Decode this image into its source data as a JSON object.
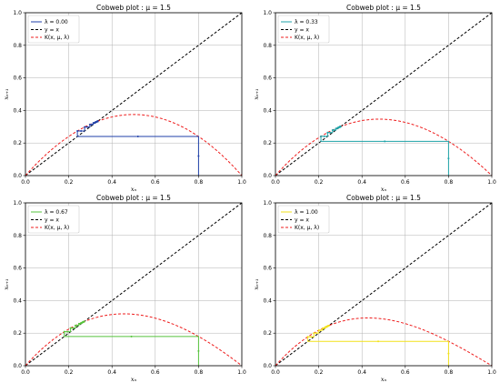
{
  "chart_data": [
    {
      "type": "line",
      "title": "Cobweb plot : μ = 1.5",
      "xlabel": "xₙ",
      "ylabel": "xₙ₊₁",
      "xlim": [
        0,
        1
      ],
      "ylim": [
        0,
        1
      ],
      "xticks": [
        "0.0",
        "0.2",
        "0.4",
        "0.6",
        "0.8",
        "1.0"
      ],
      "yticks": [
        "0.0",
        "0.2",
        "0.4",
        "0.6",
        "0.8",
        "1.0"
      ],
      "grid": true,
      "legend_loc": "upper-left",
      "lambda": 0.0,
      "x0": 0.8,
      "legend": [
        "λ = 0.00",
        "y = x",
        "K(x, μ, λ)"
      ],
      "series": [
        {
          "name": "λ = 0.00",
          "color": "#1f3fa8",
          "style": "cobweb"
        },
        {
          "name": "y = x",
          "color": "#000000",
          "style": "dashed"
        },
        {
          "name": "K(x, μ, λ)",
          "color": "#ee1c1c",
          "style": "dashed"
        }
      ]
    },
    {
      "type": "line",
      "title": "Cobweb plot : μ = 1.5",
      "xlabel": "xₙ",
      "ylabel": "xₙ₊₁",
      "xlim": [
        0,
        1
      ],
      "ylim": [
        0,
        1
      ],
      "xticks": [
        "0.0",
        "0.2",
        "0.4",
        "0.6",
        "0.8",
        "1.0"
      ],
      "yticks": [
        "0.0",
        "0.2",
        "0.4",
        "0.6",
        "0.8",
        "1.0"
      ],
      "grid": true,
      "legend_loc": "upper-left",
      "lambda": 0.33,
      "x0": 0.8,
      "legend": [
        "λ = 0.33",
        "y = x",
        "K(x, μ, λ)"
      ],
      "series": [
        {
          "name": "λ = 0.33",
          "color": "#1fa3a8",
          "style": "cobweb"
        },
        {
          "name": "y = x",
          "color": "#000000",
          "style": "dashed"
        },
        {
          "name": "K(x, μ, λ)",
          "color": "#ee1c1c",
          "style": "dashed"
        }
      ]
    },
    {
      "type": "line",
      "title": "Cobweb plot : μ = 1.5",
      "xlabel": "xₙ",
      "ylabel": "xₙ₊₁",
      "xlim": [
        0,
        1
      ],
      "ylim": [
        0,
        1
      ],
      "xticks": [
        "0.0",
        "0.2",
        "0.4",
        "0.6",
        "0.8",
        "1.0"
      ],
      "yticks": [
        "0.0",
        "0.2",
        "0.4",
        "0.6",
        "0.8",
        "1.0"
      ],
      "grid": true,
      "legend_loc": "upper-left",
      "lambda": 0.67,
      "x0": 0.8,
      "legend": [
        "λ = 0.67",
        "y = x",
        "K(x, μ, λ)"
      ],
      "series": [
        {
          "name": "λ = 0.67",
          "color": "#56c43c",
          "style": "cobweb"
        },
        {
          "name": "y = x",
          "color": "#000000",
          "style": "dashed"
        },
        {
          "name": "K(x, μ, λ)",
          "color": "#ee1c1c",
          "style": "dashed"
        }
      ]
    },
    {
      "type": "line",
      "title": "Cobweb plot : μ = 1.5",
      "xlabel": "xₙ",
      "ylabel": "xₙ₊₁",
      "xlim": [
        0,
        1
      ],
      "ylim": [
        0,
        1
      ],
      "xticks": [
        "0.0",
        "0.2",
        "0.4",
        "0.6",
        "0.8",
        "1.0"
      ],
      "yticks": [
        "0.0",
        "0.2",
        "0.4",
        "0.6",
        "0.8",
        "1.0"
      ],
      "grid": true,
      "legend_loc": "upper-left",
      "lambda": 1.0,
      "x0": 0.8,
      "legend": [
        "λ = 1.00",
        "y = x",
        "K(x, μ, λ)"
      ],
      "series": [
        {
          "name": "λ = 1.00",
          "color": "#f2e21a",
          "style": "cobweb"
        },
        {
          "name": "y = x",
          "color": "#000000",
          "style": "dashed"
        },
        {
          "name": "K(x, μ, λ)",
          "color": "#ee1c1c",
          "style": "dashed"
        }
      ]
    }
  ]
}
